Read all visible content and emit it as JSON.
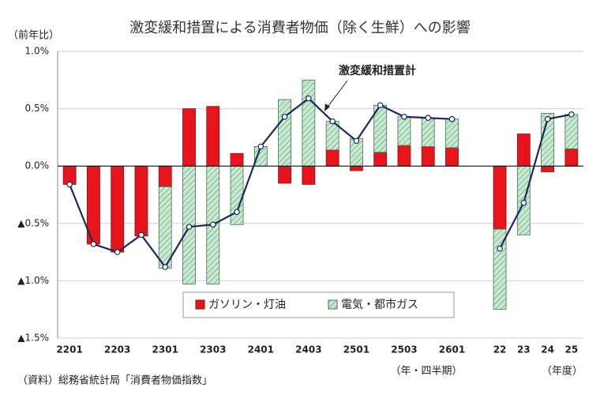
{
  "chart_data": {
    "type": "bar",
    "title": "激変緩和措置による消費者物価（除く生鮮）への影響",
    "y_label": "（前年比）",
    "x_note_quarter": "（年・四半期）",
    "x_note_year": "（年度）",
    "source": "（資料）総務省統計局「消費者物価指数」",
    "categories": [
      "2201",
      null,
      "2203",
      null,
      "2301",
      null,
      "2303",
      null,
      "2401",
      null,
      "2403",
      null,
      "2501",
      null,
      "2503",
      null,
      "2601",
      null,
      "22",
      "23",
      "24",
      "25"
    ],
    "series": [
      {
        "name": "ガソリン・灯油",
        "color": "#e8141b",
        "values": [
          -0.16,
          -0.68,
          -0.75,
          -0.61,
          -0.18,
          0.5,
          0.52,
          0.11,
          0,
          -0.15,
          -0.16,
          0.14,
          -0.04,
          0.12,
          0.18,
          0.17,
          0.16,
          null,
          -0.55,
          0.28,
          -0.05,
          0.15
        ]
      },
      {
        "name": "電気・都市ガス",
        "color": "#c8e8d2",
        "values": [
          0,
          0,
          0,
          0,
          -0.71,
          -1.03,
          -1.03,
          -0.51,
          0.17,
          0.58,
          0.75,
          0.25,
          0.24,
          0.41,
          0.25,
          0.25,
          0.25,
          null,
          -0.7,
          -0.6,
          0.46,
          0.3
        ]
      },
      {
        "name": "激変緩和措置計",
        "type": "line",
        "color": "#1b2a5c",
        "values": [
          -0.16,
          -0.68,
          -0.75,
          -0.6,
          -0.88,
          -0.53,
          -0.51,
          -0.4,
          0.17,
          0.43,
          0.59,
          0.39,
          0.22,
          0.53,
          0.43,
          0.42,
          0.41,
          null,
          -0.72,
          -0.32,
          0.41,
          0.45
        ]
      }
    ],
    "ylim": [
      -1.5,
      1.0
    ],
    "yticks": [
      {
        "value": -1.5,
        "label": "▲1.5%"
      },
      {
        "value": -1.0,
        "label": "▲1.0%"
      },
      {
        "value": -0.5,
        "label": "▲0.5%"
      },
      {
        "value": 0,
        "label": "0.0%"
      },
      {
        "value": 0.5,
        "label": "0.5%"
      },
      {
        "value": 1.0,
        "label": "1.0%"
      }
    ],
    "grid": true
  }
}
